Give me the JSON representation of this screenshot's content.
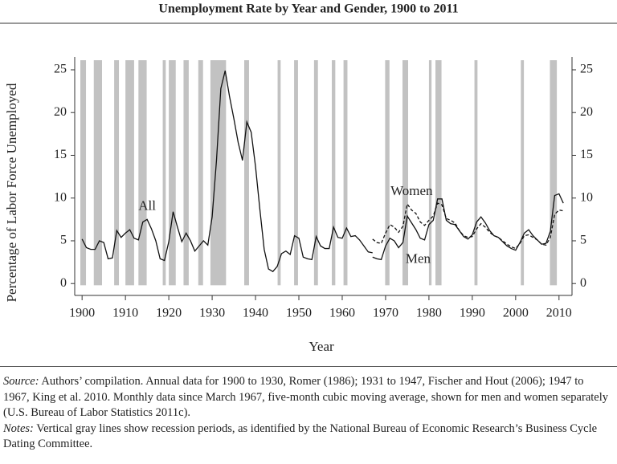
{
  "chart_data": {
    "type": "line",
    "title": "Unemployment Rate by Year and Gender, 1900 to 2011",
    "ylabel": "Percentage of Labor Force Unemployed",
    "xlabel": "Year",
    "xlim": [
      1898.3,
      2013
    ],
    "xticks": [
      1900,
      1910,
      1920,
      1930,
      1940,
      1950,
      1960,
      1970,
      1980,
      1990,
      2000,
      2010
    ],
    "ylim": [
      -1.2,
      26.5
    ],
    "yticks": [
      0,
      5,
      10,
      15,
      20,
      25
    ],
    "y2lim": [
      -1.2,
      26.5
    ],
    "y2ticks": [
      0,
      5,
      10,
      15,
      20,
      25
    ],
    "recession_color": "#c2c2c2",
    "recessions": [
      [
        1899.6,
        1900.9
      ],
      [
        1902.7,
        1904.6
      ],
      [
        1907.4,
        1908.5
      ],
      [
        1910.0,
        1912.0
      ],
      [
        1913.0,
        1914.9
      ],
      [
        1918.6,
        1919.3
      ],
      [
        1920.0,
        1921.6
      ],
      [
        1923.4,
        1924.6
      ],
      [
        1926.8,
        1927.9
      ],
      [
        1929.6,
        1933.2
      ],
      [
        1937.4,
        1938.5
      ],
      [
        1945.1,
        1945.8
      ],
      [
        1948.9,
        1949.8
      ],
      [
        1953.5,
        1954.4
      ],
      [
        1957.6,
        1958.4
      ],
      [
        1960.3,
        1961.2
      ],
      [
        1969.9,
        1970.9
      ],
      [
        1973.9,
        1975.2
      ],
      [
        1980.0,
        1980.6
      ],
      [
        1981.5,
        1982.9
      ],
      [
        1990.5,
        1991.2
      ],
      [
        2001.2,
        2001.9
      ],
      [
        2007.9,
        2009.5
      ]
    ],
    "series": [
      {
        "name": "All",
        "color": "#111111",
        "style": "solid",
        "x": [
          1900,
          1901,
          1902,
          1903,
          1904,
          1905,
          1906,
          1907,
          1908,
          1909,
          1910,
          1911,
          1912,
          1913,
          1914,
          1915,
          1916,
          1917,
          1918,
          1919,
          1920,
          1921,
          1922,
          1923,
          1924,
          1925,
          1926,
          1927,
          1928,
          1929,
          1930,
          1931,
          1932,
          1933,
          1934,
          1935,
          1936,
          1937,
          1938,
          1939,
          1940,
          1941,
          1942,
          1943,
          1944,
          1945,
          1946,
          1947,
          1948,
          1949,
          1950,
          1951,
          1952,
          1953,
          1954,
          1955,
          1956,
          1957,
          1958,
          1959,
          1960,
          1961,
          1962,
          1963,
          1964,
          1965,
          1966,
          1967
        ],
        "values": [
          5.2,
          4.2,
          4.0,
          4.0,
          5.0,
          4.8,
          2.9,
          3.0,
          6.2,
          5.4,
          5.9,
          6.3,
          5.3,
          5.1,
          7.2,
          7.5,
          6.4,
          5.0,
          2.9,
          2.7,
          4.9,
          8.4,
          6.6,
          4.9,
          5.9,
          5.0,
          3.8,
          4.4,
          5.0,
          4.5,
          7.8,
          14.4,
          22.8,
          24.9,
          21.9,
          19.3,
          16.5,
          14.4,
          18.9,
          17.7,
          13.7,
          8.7,
          4.0,
          1.7,
          1.4,
          2.0,
          3.5,
          3.8,
          3.4,
          5.6,
          5.3,
          3.1,
          2.9,
          2.8,
          5.5,
          4.4,
          4.1,
          4.1,
          6.6,
          5.4,
          5.3,
          6.5,
          5.5,
          5.6,
          5.1,
          4.4,
          3.7,
          3.6
        ]
      },
      {
        "name": "Women",
        "color": "#111111",
        "style": "dashed",
        "x": [
          1967,
          1968,
          1969,
          1970,
          1971,
          1972,
          1973,
          1974,
          1975,
          1976,
          1977,
          1978,
          1979,
          1980,
          1981,
          1982,
          1983,
          1984,
          1985,
          1986,
          1987,
          1988,
          1989,
          1990,
          1991,
          1992,
          1993,
          1994,
          1995,
          1996,
          1997,
          1998,
          1999,
          2000,
          2001,
          2002,
          2003,
          2004,
          2005,
          2006,
          2007,
          2008,
          2009,
          2010,
          2011
        ],
        "values": [
          5.2,
          4.8,
          4.7,
          5.9,
          6.9,
          6.6,
          6.0,
          6.7,
          9.3,
          8.6,
          8.2,
          7.2,
          6.8,
          7.4,
          7.9,
          9.4,
          9.2,
          7.6,
          7.4,
          7.1,
          6.2,
          5.6,
          5.4,
          5.5,
          6.4,
          7.0,
          6.6,
          6.0,
          5.6,
          5.4,
          5.0,
          4.6,
          4.3,
          4.1,
          4.7,
          5.6,
          5.7,
          5.4,
          5.1,
          4.6,
          4.5,
          5.4,
          8.1,
          8.6,
          8.5
        ]
      },
      {
        "name": "Men",
        "color": "#111111",
        "style": "solid",
        "x": [
          1967,
          1968,
          1969,
          1970,
          1971,
          1972,
          1973,
          1974,
          1975,
          1976,
          1977,
          1978,
          1979,
          1980,
          1981,
          1982,
          1983,
          1984,
          1985,
          1986,
          1987,
          1988,
          1989,
          1990,
          1991,
          1992,
          1993,
          1994,
          1995,
          1996,
          1997,
          1998,
          1999,
          2000,
          2001,
          2002,
          2003,
          2004,
          2005,
          2006,
          2007,
          2008,
          2009,
          2010,
          2011
        ],
        "values": [
          3.1,
          2.9,
          2.8,
          4.4,
          5.3,
          5.0,
          4.2,
          4.8,
          7.9,
          7.1,
          6.3,
          5.3,
          5.1,
          6.9,
          7.4,
          9.9,
          9.9,
          7.4,
          7.0,
          6.9,
          6.2,
          5.5,
          5.2,
          5.7,
          7.2,
          7.8,
          7.1,
          6.2,
          5.6,
          5.4,
          4.9,
          4.4,
          4.1,
          3.9,
          4.8,
          5.9,
          6.3,
          5.6,
          5.1,
          4.6,
          4.7,
          6.1,
          10.3,
          10.5,
          9.4
        ]
      }
    ],
    "source_label": "Source:",
    "source": "Authors’ compilation. Annual data for 1900 to 1930, Romer (1986); 1931 to 1947, Fischer and Hout (2006); 1947 to 1967, King et al. 2010. Monthly data since March 1967, five-month cubic moving average, shown for men and women separately (U.S. Bureau of Labor Statistics 2011c).",
    "notes_label": "Notes:",
    "notes": "Vertical gray lines show recession periods, as identified by the National Bureau of Economic Research’s Business Cycle Dating Committee."
  }
}
